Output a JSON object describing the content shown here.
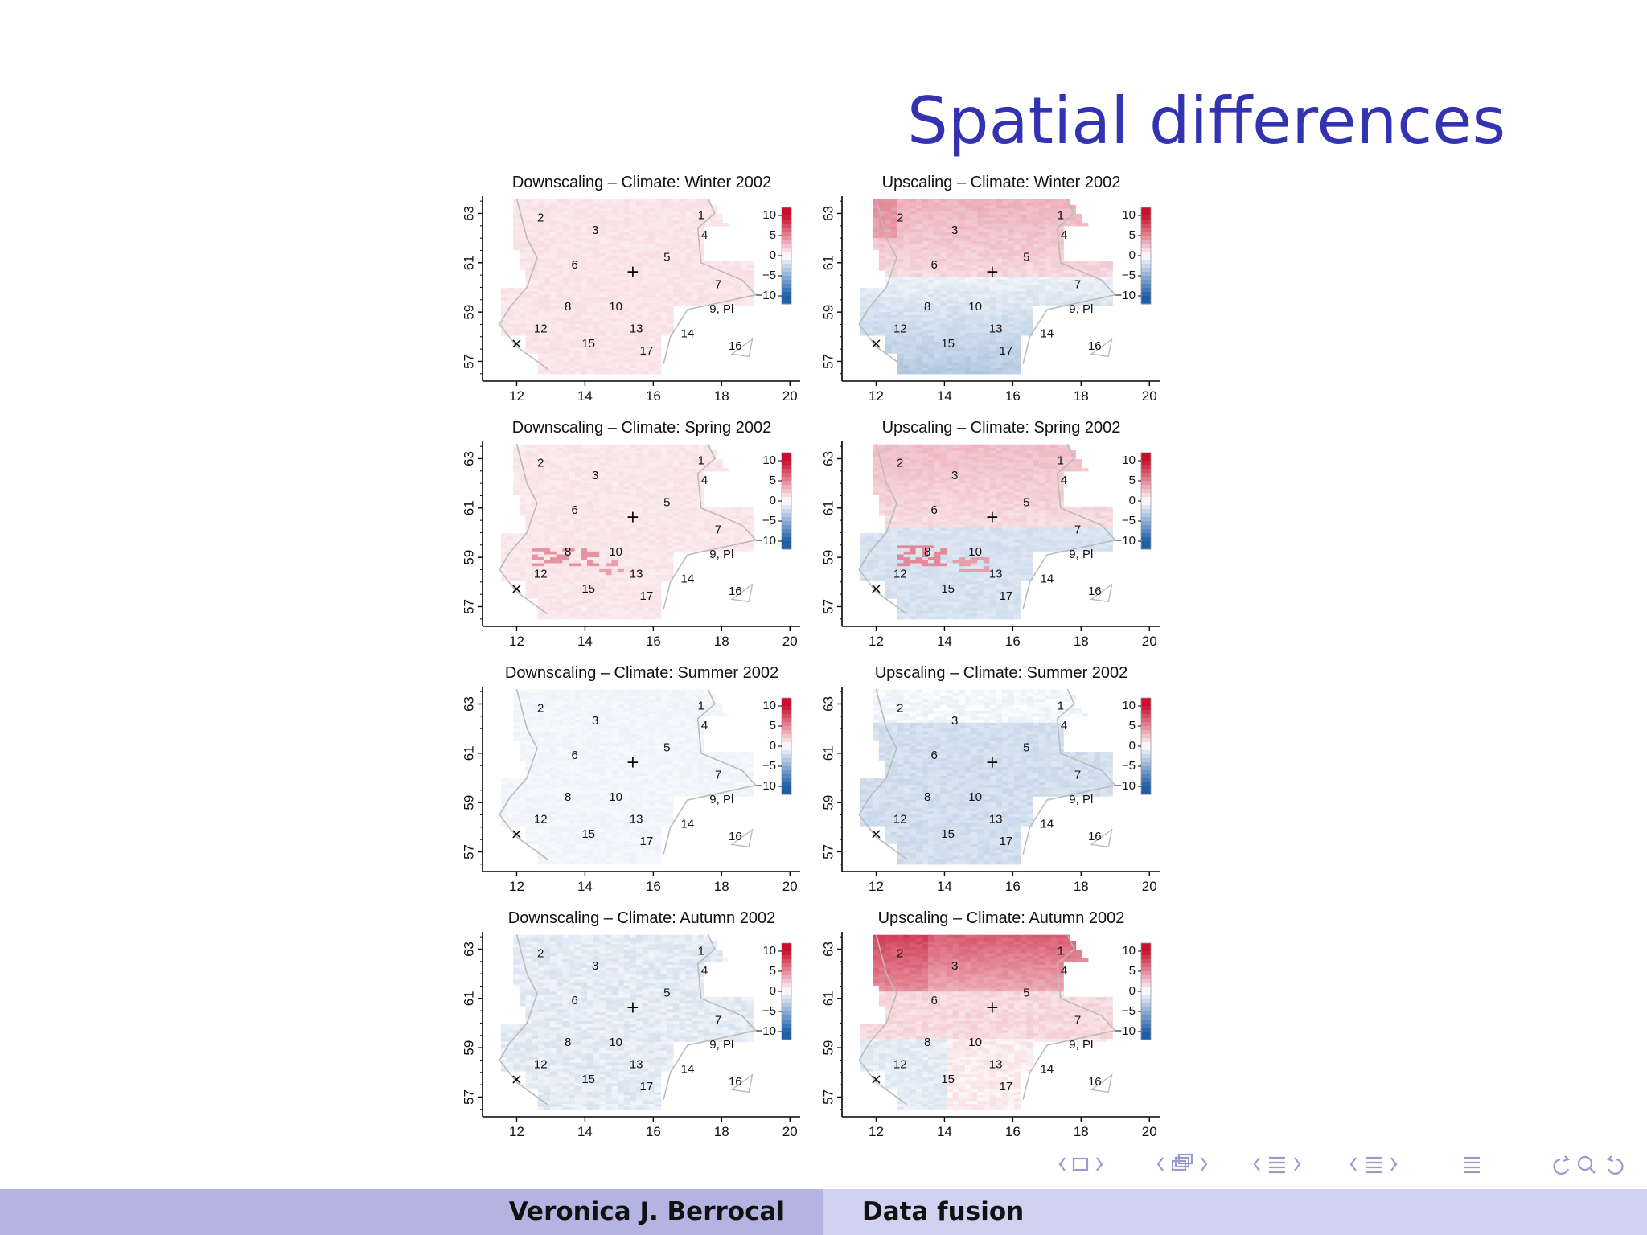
{
  "slide": {
    "title": "Spatial differences"
  },
  "footer": {
    "author": "Veronica J. Berrocal",
    "talk": "Data fusion"
  },
  "navigation": {
    "icons": [
      "nav-frame-icon",
      "nav-subsection-icon",
      "nav-section-icon",
      "nav-document-icon",
      "nav-align-icon",
      "nav-search-icon"
    ]
  },
  "colors": {
    "title": "#3333b2",
    "footer_left": "#b4b4e2",
    "footer_right": "#d0d0ef",
    "positive": "#d73027",
    "negative": "#2166ac"
  },
  "panels": [
    {
      "title": "Downscaling – Climate: Winter 2002",
      "method": "Downscaling",
      "season": "Winter",
      "pattern": "pink_all"
    },
    {
      "title": "Upscaling – Climate: Winter 2002",
      "method": "Upscaling",
      "season": "Winter",
      "pattern": "north_pink_south_blue"
    },
    {
      "title": "Downscaling – Climate: Spring 2002",
      "method": "Downscaling",
      "season": "Spring",
      "pattern": "pink_with_hotspots"
    },
    {
      "title": "Upscaling – Climate: Spring 2002",
      "method": "Upscaling",
      "season": "Spring",
      "pattern": "north_pink_south_blue_hotspots"
    },
    {
      "title": "Downscaling – Climate: Summer 2002",
      "method": "Downscaling",
      "season": "Summer",
      "pattern": "very_light_blue"
    },
    {
      "title": "Upscaling – Climate: Summer 2002",
      "method": "Upscaling",
      "season": "Summer",
      "pattern": "light_blue"
    },
    {
      "title": "Downscaling – Climate: Autumn 2002",
      "method": "Downscaling",
      "season": "Autumn",
      "pattern": "light_blue_mixed"
    },
    {
      "title": "Upscaling – Climate: Autumn 2002",
      "method": "Upscaling",
      "season": "Autumn",
      "pattern": "strong_north_red"
    }
  ],
  "axes": {
    "x_ticks": [
      "12",
      "14",
      "16",
      "18",
      "20"
    ],
    "y_ticks": [
      "57",
      "59",
      "61",
      "63"
    ]
  },
  "colorbar": {
    "ticks": [
      "10",
      "5",
      "0",
      "−5",
      "−10"
    ]
  },
  "stations": [
    "1",
    "2",
    "3",
    "4",
    "5",
    "6",
    "7",
    "8",
    "9, Pl",
    "10",
    "12",
    "13",
    "14",
    "15",
    "16",
    "17"
  ],
  "markers": {
    "plus": "+",
    "cross": "×"
  }
}
